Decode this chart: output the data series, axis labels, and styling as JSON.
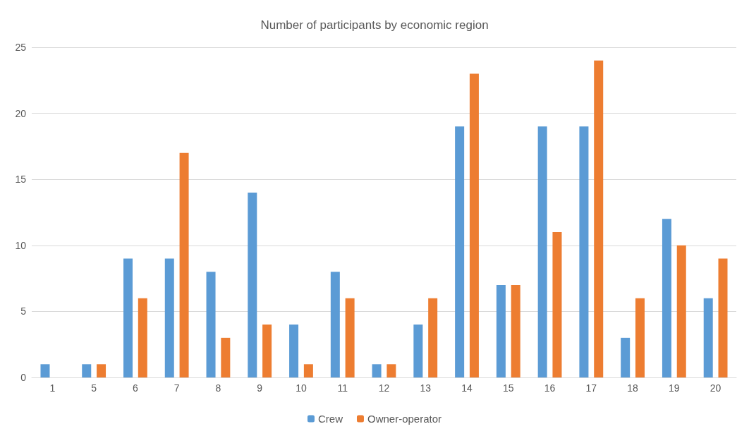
{
  "chart_data": {
    "type": "bar",
    "title": "Number of participants by economic region",
    "categories": [
      "1",
      "5",
      "6",
      "7",
      "8",
      "9",
      "10",
      "11",
      "12",
      "13",
      "14",
      "15",
      "16",
      "17",
      "18",
      "19",
      "20"
    ],
    "series": [
      {
        "name": "Crew",
        "color": "#5b9bd5",
        "values": [
          1,
          1,
          9,
          9,
          8,
          14,
          4,
          8,
          1,
          4,
          19,
          7,
          19,
          19,
          3,
          12,
          6
        ]
      },
      {
        "name": "Owner-operator",
        "color": "#ed7d31",
        "values": [
          0,
          1,
          6,
          17,
          3,
          4,
          1,
          6,
          1,
          6,
          23,
          7,
          11,
          24,
          6,
          10,
          9
        ]
      }
    ],
    "ylim": [
      0,
      25
    ],
    "yticks": [
      0,
      5,
      10,
      15,
      20,
      25
    ],
    "grid": "y",
    "legend": "bottom"
  }
}
